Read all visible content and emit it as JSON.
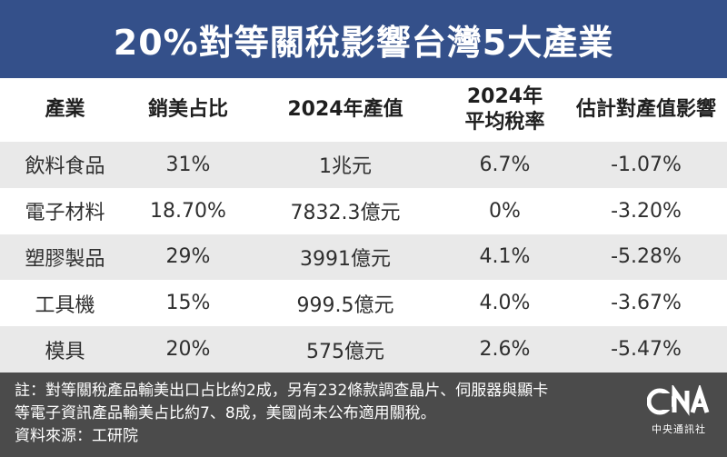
{
  "title": "20%對等關稅影響台灣5大產業",
  "table": {
    "headers": [
      "產業",
      "銷美占比",
      "2024年產值",
      "2024年\n平均稅率",
      "估計對產值影響"
    ],
    "rows": [
      [
        "飲料食品",
        "31%",
        "1兆元",
        "6.7%",
        "-1.07%"
      ],
      [
        "電子材料",
        "18.70%",
        "7832.3億元",
        "0%",
        "-3.20%"
      ],
      [
        "塑膠製品",
        "29%",
        "3991億元",
        "4.1%",
        "-5.28%"
      ],
      [
        "工具機",
        "15%",
        "999.5億元",
        "4.0%",
        "-3.67%"
      ],
      [
        "模具",
        "20%",
        "575億元",
        "2.6%",
        "-5.47%"
      ]
    ]
  },
  "footer": {
    "note_line1": "註：對等關稅產品輸美出口占比約2成，另有232條款調查晶片、伺服器與顯卡",
    "note_line2": "等電子資訊產品輸美占比約7、8成，美國尚未公布適用關稅。",
    "source": "資料來源：工研院",
    "logo_text": "中央通訊社",
    "logo_wordmark": "CNA"
  },
  "colors": {
    "title_bg": "#34508a",
    "row_alt_bg": "#e9e9e9",
    "footer_bg": "#4b4b4b"
  }
}
